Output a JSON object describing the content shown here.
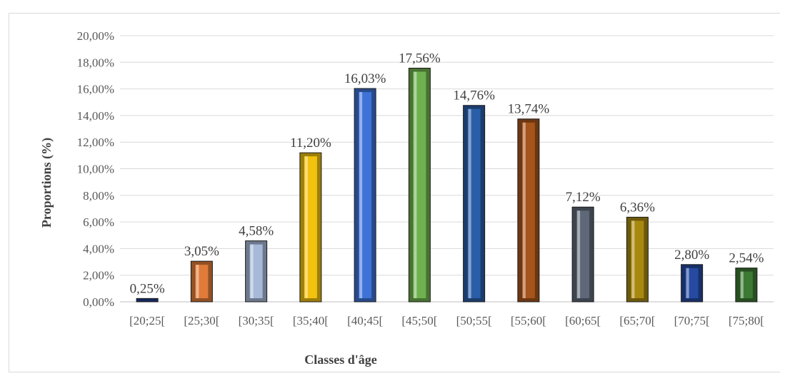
{
  "chart_data": {
    "type": "bar",
    "xlabel": "Classes d'âge",
    "ylabel": "Proportions (%)",
    "ylim": [
      0,
      20
    ],
    "ytick_step": 2,
    "ytick_labels": [
      "0,00%",
      "2,00%",
      "4,00%",
      "6,00%",
      "8,00%",
      "10,00%",
      "12,00%",
      "14,00%",
      "16,00%",
      "18,00%",
      "20,00%"
    ],
    "grid": true,
    "legend": "none",
    "categories": [
      "[20;25[",
      "[25;30[",
      "[30;35[",
      "[35;40[",
      "[40;45[",
      "[45;50[",
      "[50;55[",
      "[55;60[",
      "[60;65[",
      "[65;70[",
      "[70;75[",
      "[75;80["
    ],
    "values": [
      0.25,
      3.05,
      4.58,
      11.2,
      16.03,
      17.56,
      14.76,
      13.74,
      7.12,
      6.36,
      2.8,
      2.54
    ],
    "value_labels": [
      "0,25%",
      "3,05%",
      "4,58%",
      "11,20%",
      "16,03%",
      "17,56%",
      "14,76%",
      "13,74%",
      "7,12%",
      "6,36%",
      "2,80%",
      "2,54%"
    ],
    "colors": [
      "#1f3f8c",
      "#e07b39",
      "#a7b9d8",
      "#f2c20f",
      "#3e72d6",
      "#6fb14f",
      "#2a5ea8",
      "#a5541b",
      "#5f6878",
      "#a8890f",
      "#254aa0",
      "#3c7a33"
    ]
  }
}
